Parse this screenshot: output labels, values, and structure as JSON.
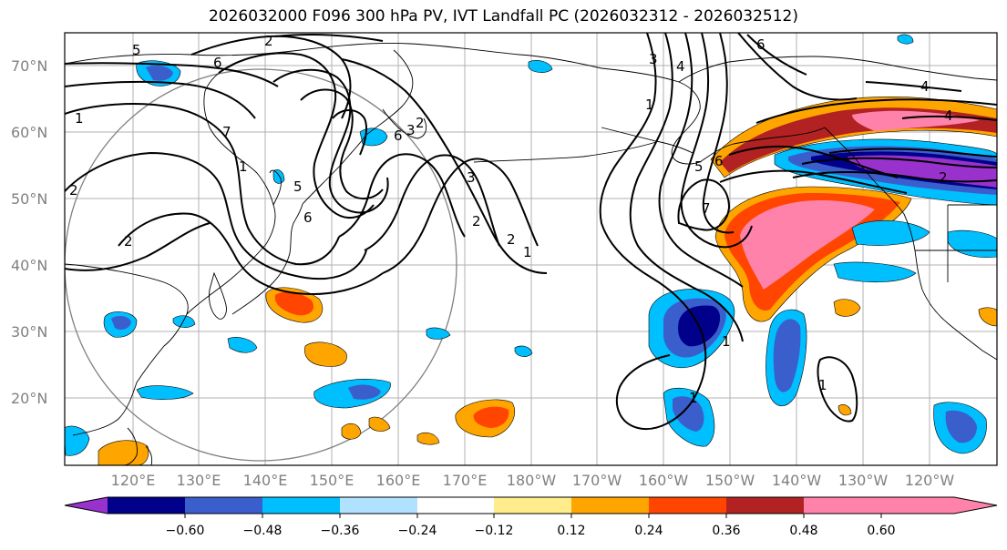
{
  "title": "2026032000 F096 300 hPa PV, IVT Landfall PC (2026032312 - 2026032512)",
  "lat_labels": [
    "70°N",
    "60°N",
    "50°N",
    "40°N",
    "30°N",
    "20°N"
  ],
  "lon_labels": [
    "120°E",
    "130°E",
    "140°E",
    "150°E",
    "160°E",
    "170°E",
    "180°W",
    "170°W",
    "160°W",
    "150°W",
    "140°W",
    "130°W",
    "120°W"
  ],
  "colorbar": {
    "colors": [
      "#9932cc",
      "#00008b",
      "#3a5fcd",
      "#00bfff",
      "#b0e2ff",
      "#ffffff",
      "#ffec8b",
      "#ffa500",
      "#ff4500",
      "#b22222",
      "#ff82ab"
    ],
    "tick_labels": [
      "−0.60",
      "−0.48",
      "−0.36",
      "−0.24",
      "−0.12",
      "0.12",
      "0.24",
      "0.36",
      "0.48",
      "0.60"
    ]
  },
  "pv_contour_labels": [
    "5",
    "6",
    "7",
    "1",
    "2",
    "3",
    "4",
    "5",
    "6",
    "7",
    "1",
    "2",
    "3",
    "4",
    "5",
    "6",
    "7",
    "1",
    "2"
  ]
}
